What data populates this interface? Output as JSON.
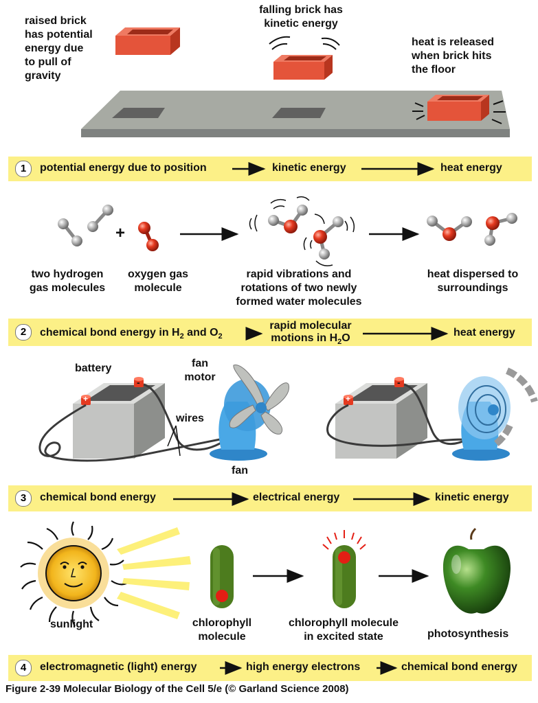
{
  "colors": {
    "band": "#fcf087",
    "brick": "#e4543a",
    "floor": "#a7aaa3",
    "atom_red": "#e53a20",
    "atom_gray": "#b7b7b7",
    "fan_blue": "#4aa8e6",
    "chlorophyll": "#4d7c1e",
    "apple": "#3e8a24"
  },
  "panel1": {
    "label_raised": "raised brick\nhas potential\nenergy due\nto pull of\ngravity",
    "label_falling": "falling brick has\nkinetic energy",
    "label_heat": "heat is released\nwhen brick hits\nthe floor",
    "band": {
      "number": "1",
      "step1": "potential energy due to position",
      "step2": "kinetic energy",
      "step3": "heat energy"
    }
  },
  "panel2": {
    "label_h2": "two hydrogen\ngas molecules",
    "label_o2": "oxygen gas\nmolecule",
    "label_water": "rapid vibrations and\nrotations of two newly\nformed water molecules",
    "label_heat": "heat dispersed to\nsurroundings",
    "plus": "+",
    "band": {
      "number": "2",
      "step1_pre": "chemical bond energy in H",
      "sub1": "2",
      "step1_mid": " and O",
      "sub2": "2",
      "step2_line1": "rapid molecular",
      "step2_line2_pre": "motions in H",
      "sub3": "2",
      "step2_line2_post": "O",
      "step3": "heat energy"
    }
  },
  "panel3": {
    "label_battery": "battery",
    "label_motor": "fan\nmotor",
    "label_wires": "wires",
    "label_fan": "fan",
    "plus_sign": "+",
    "minus_sign": "-",
    "band": {
      "number": "3",
      "step1": "chemical bond energy",
      "step2": "electrical energy",
      "step3": "kinetic energy"
    }
  },
  "panel4": {
    "label_sunlight": "sunlight",
    "label_chlorophyll": "chlorophyll\nmolecule",
    "label_excited": "chlorophyll molecule\nin excited state",
    "label_photo": "photosynthesis",
    "band": {
      "number": "4",
      "step1": "electromagnetic (light) energy",
      "step2": "high energy electrons",
      "step3": "chemical bond energy"
    }
  },
  "caption": "Figure 2-39  Molecular Biology of the Cell 5/e (© Garland Science 2008)"
}
